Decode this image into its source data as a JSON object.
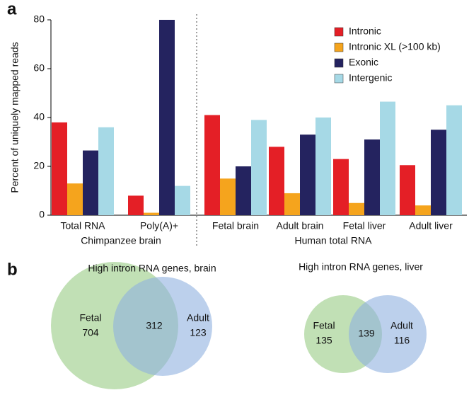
{
  "panel_labels": [
    "a",
    "b"
  ],
  "chart_data": {
    "type": "bar",
    "ylabel": "Percent of uniquely mapped reads",
    "categories": [
      "Total RNA",
      "Poly(A)+",
      "Fetal brain",
      "Adult brain",
      "Fetal liver",
      "Adult liver"
    ],
    "groups": [
      "Chimpanzee brain",
      "Human total RNA"
    ],
    "series": [
      {
        "name": "Intronic",
        "color": "#e41f26",
        "values": [
          38,
          8,
          41,
          28,
          23,
          20.5
        ]
      },
      {
        "name": "Intronic XL (>100 kb)",
        "color": "#f5a41d",
        "values": [
          13,
          1,
          15,
          9,
          5,
          4
        ]
      },
      {
        "name": "Exonic",
        "color": "#24235f",
        "values": [
          26.5,
          80,
          20,
          33,
          31,
          35
        ]
      },
      {
        "name": "Intergenic",
        "color": "#a6d9e6",
        "values": [
          36,
          12,
          39,
          40,
          46.5,
          45
        ]
      }
    ],
    "ylim": [
      0,
      80
    ],
    "yticks": [
      0,
      20,
      40,
      60,
      80
    ],
    "legend": "upper right"
  },
  "venns": [
    {
      "title": "High intron RNA genes, brain",
      "left": "Fetal",
      "left_count": "704",
      "both": "312",
      "right": "Adult",
      "right_count": "123"
    },
    {
      "title": "High intron RNA genes, liver",
      "left": "Fetal",
      "left_count": "135",
      "both": "139",
      "right": "Adult",
      "right_count": "116"
    }
  ]
}
